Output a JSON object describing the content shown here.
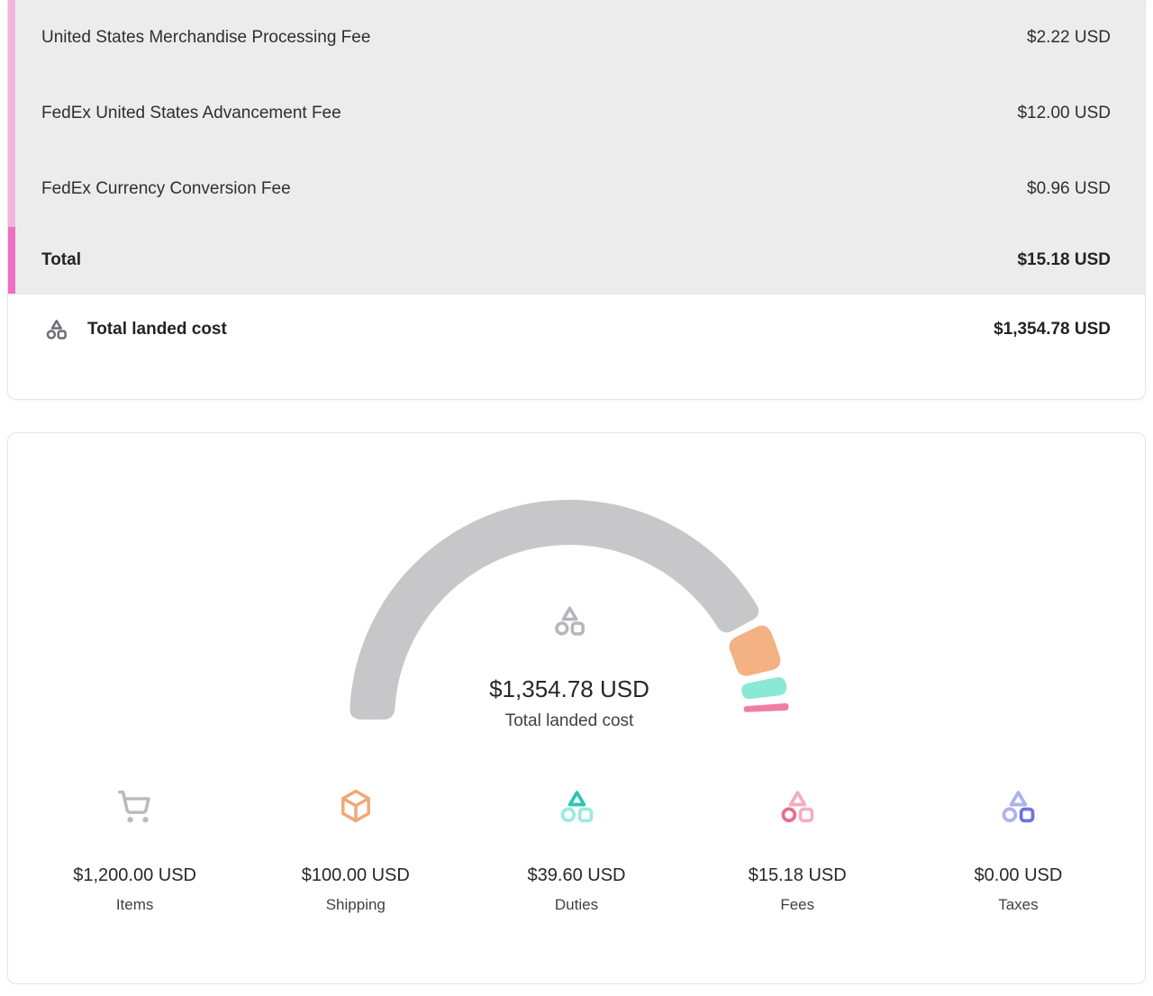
{
  "accent_colors": {
    "stripe_light_pink": "#f3b3dc",
    "stripe_strong_pink": "#ee6ec2",
    "row_background": "#ececed"
  },
  "fees_table": {
    "rows": [
      {
        "label": "United States Merchandise Processing Fee",
        "value": "$2.22 USD"
      },
      {
        "label": "FedEx United States Advancement Fee",
        "value": "$12.00 USD"
      },
      {
        "label": "FedEx Currency Conversion Fee",
        "value": "$0.96 USD"
      }
    ],
    "total": {
      "label": "Total",
      "value": "$15.18 USD"
    }
  },
  "total_landed_cost_row": {
    "icon": "shapes-icon",
    "icon_color": "#6d6d73",
    "label": "Total landed cost",
    "value": "$1,354.78 USD"
  },
  "chart_data": {
    "type": "pie",
    "subtype": "half-donut-gauge",
    "title": "Total landed cost",
    "center_icon": "shapes-icon",
    "center_icon_color": "#b7b7bb",
    "center_value": "$1,354.78 USD",
    "center_label": "Total landed cost",
    "total": 1354.78,
    "legend_position": "bottom",
    "segments": [
      {
        "name": "Items",
        "value": 1200.0,
        "display": "$1,200.00 USD",
        "color": "#c7c7c9",
        "icon": "cart-icon",
        "icon_color": "#bababe"
      },
      {
        "name": "Shipping",
        "value": 100.0,
        "display": "$100.00 USD",
        "color": "#f4b183",
        "icon": "package-icon",
        "icon_color": "#f0a878"
      },
      {
        "name": "Duties",
        "value": 39.6,
        "display": "$39.60 USD",
        "color": "#8be8d5",
        "icon": "shapes-icon",
        "icon_colors": {
          "triangle": "#2cc7ab",
          "circle": "#9debdc",
          "square": "#9debdc"
        }
      },
      {
        "name": "Fees",
        "value": 15.18,
        "display": "$15.18 USD",
        "color": "#ee7ea4",
        "icon": "shapes-icon",
        "icon_colors": {
          "triangle": "#f3aebf",
          "circle": "#e56e92",
          "square": "#f3aebf"
        }
      },
      {
        "name": "Taxes",
        "value": 0.0,
        "display": "$0.00 USD",
        "color": "#8b93f8",
        "icon": "shapes-icon",
        "icon_colors": {
          "triangle": "#adb2ee",
          "circle": "#adb2ee",
          "square": "#6a73e1"
        }
      }
    ]
  }
}
